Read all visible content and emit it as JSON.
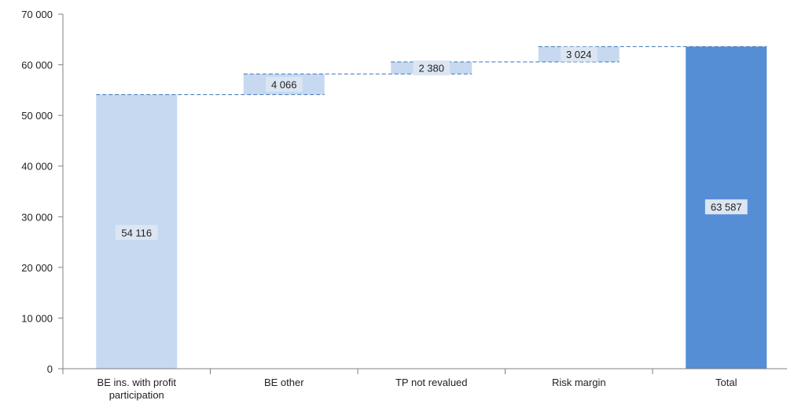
{
  "chart_data": {
    "type": "bar",
    "subtype": "waterfall",
    "categories": [
      "BE ins. with profit participation",
      "BE other",
      "TP not revalued",
      "Risk margin",
      "Total"
    ],
    "category_lines": [
      [
        "BE ins. with profit",
        "participation"
      ],
      [
        "BE other"
      ],
      [
        "TP not revalued"
      ],
      [
        "Risk margin"
      ],
      [
        "Total"
      ]
    ],
    "values": [
      54116,
      4066,
      2380,
      3024,
      63587
    ],
    "value_labels": [
      "54 116",
      "4 066",
      "2 380",
      "3 024",
      "63 587"
    ],
    "bar_kinds": [
      "start",
      "delta",
      "delta",
      "delta",
      "total"
    ],
    "ylim": [
      0,
      70000
    ],
    "yticks": [
      0,
      10000,
      20000,
      30000,
      40000,
      50000,
      60000,
      70000
    ],
    "ytick_labels": [
      "0",
      "10 000",
      "20 000",
      "30 000",
      "40 000",
      "50 000",
      "60 000",
      "70 000"
    ],
    "title": "",
    "xlabel": "",
    "ylabel": "",
    "grid": false,
    "connector_lines": "dashed",
    "colors": {
      "light_bar": "#c6d9f0",
      "total_bar": "#558ed5",
      "connector": "#4f81bd",
      "axis": "#808080",
      "label_bg": "#dce6f2"
    }
  }
}
